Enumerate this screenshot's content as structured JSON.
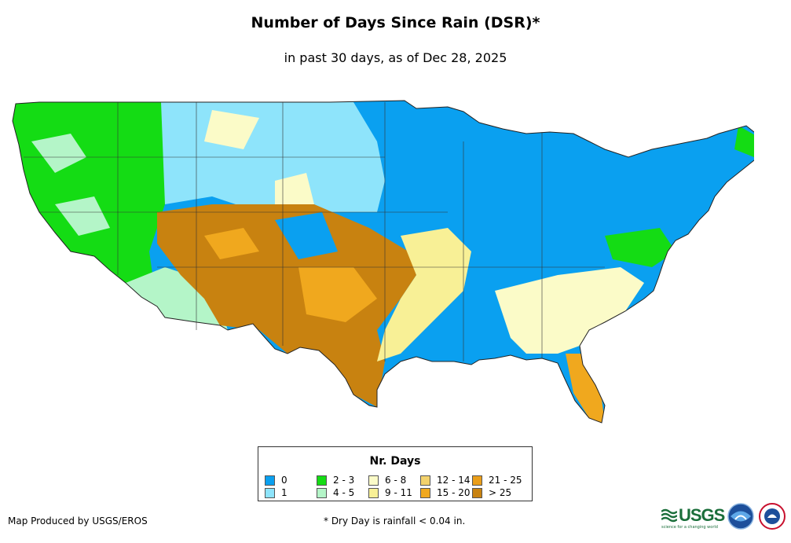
{
  "title": "Number of Days Since Rain (DSR)*",
  "subtitle": "in past 30 days, as of Dec 28, 2025",
  "legend": {
    "title": "Nr. Days",
    "items": [
      {
        "label": "0",
        "color": "#0aa0f0"
      },
      {
        "label": "1",
        "color": "#8ee4fb"
      },
      {
        "label": "2 - 3",
        "color": "#14dc14"
      },
      {
        "label": "4 - 5",
        "color": "#b4f5c8"
      },
      {
        "label": "6 - 8",
        "color": "#fbfbc8"
      },
      {
        "label": "9 - 11",
        "color": "#f8f096"
      },
      {
        "label": "12 - 14",
        "color": "#f3d26c"
      },
      {
        "label": "15 - 20",
        "color": "#f0a81e"
      },
      {
        "label": "21 - 25",
        "color": "#ea9e1a"
      },
      {
        "label": "> 25",
        "color": "#c88210"
      }
    ]
  },
  "footer": {
    "credit": "Map Produced by USGS/EROS",
    "note": "* Dry Day is rainfall < 0.04 in."
  },
  "logos": {
    "usgs": "USGS",
    "usgs_tagline": "science for a changing world"
  }
}
